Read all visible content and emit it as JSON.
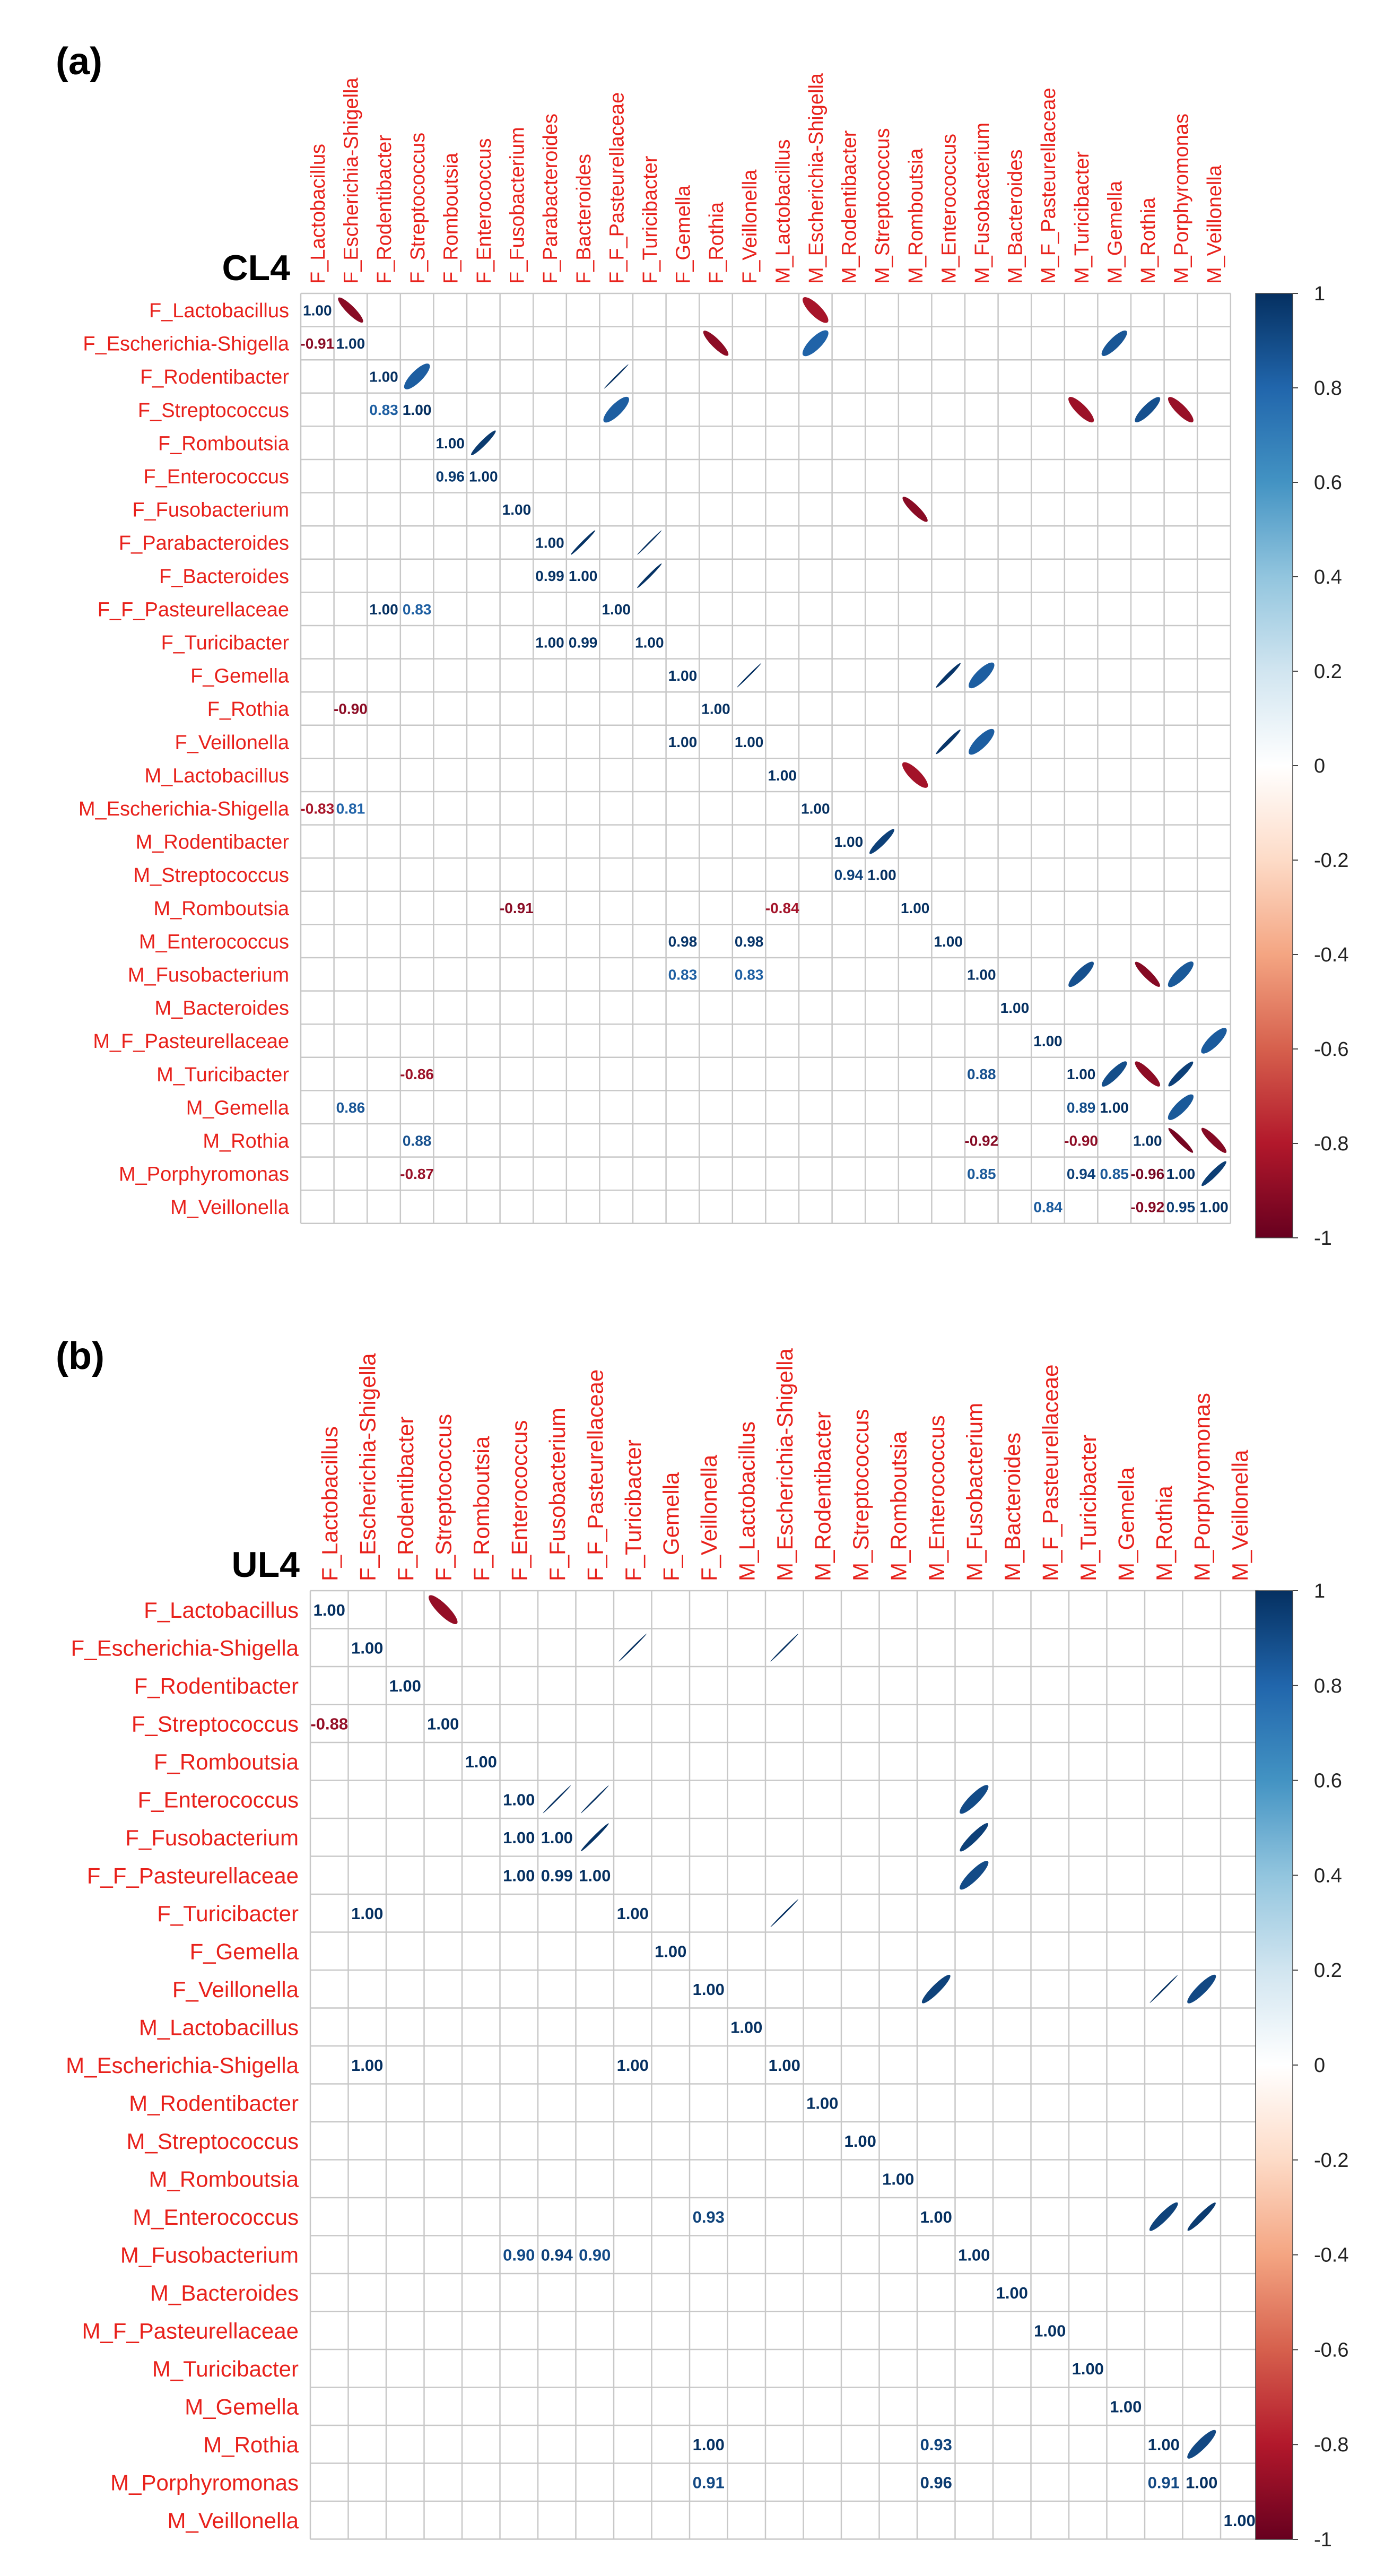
{
  "chart_data": [
    {
      "type": "heatmap",
      "panel_label": "(a)",
      "title": "CL4",
      "labels": [
        "F_Lactobacillus",
        "F_Escherichia-Shigella",
        "F_Rodentibacter",
        "F_Streptococcus",
        "F_Romboutsia",
        "F_Enterococcus",
        "F_Fusobacterium",
        "F_Parabacteroides",
        "F_Bacteroides",
        "F_F_Pasteurellaceae",
        "F_Turicibacter",
        "F_Gemella",
        "F_Rothia",
        "F_Veillonella",
        "M_Lactobacillus",
        "M_Escherichia-Shigella",
        "M_Rodentibacter",
        "M_Streptococcus",
        "M_Romboutsia",
        "M_Enterococcus",
        "M_Fusobacterium",
        "M_Bacteroides",
        "M_F_Pasteurellaceae",
        "M_Turicibacter",
        "M_Gemella",
        "M_Rothia",
        "M_Porphyromonas",
        "M_Veillonella"
      ],
      "value_range": [
        -1,
        1
      ],
      "lower_triangle": "numbers",
      "upper_triangle": "ellipses",
      "colorbar_ticks": [
        "1",
        "0.8",
        "0.6",
        "0.4",
        "0.2",
        "0",
        "-0.2",
        "-0.4",
        "-0.6",
        "-0.8",
        "-1"
      ],
      "diagonal_label": "1.00",
      "numbers": [
        {
          "r": 1,
          "c": 0,
          "text": "-0.91",
          "v": -0.91
        },
        {
          "r": 3,
          "c": 2,
          "text": "0.83",
          "v": 0.83
        },
        {
          "r": 3,
          "c": 3,
          "text": "1.00",
          "v": 1.0
        },
        {
          "r": 5,
          "c": 4,
          "text": "0.96",
          "v": 0.96
        },
        {
          "r": 8,
          "c": 7,
          "text": "0.99",
          "v": 0.99
        },
        {
          "r": 9,
          "c": 2,
          "text": "1.00",
          "v": 1.0
        },
        {
          "r": 9,
          "c": 3,
          "text": "0.83",
          "v": 0.83
        },
        {
          "r": 10,
          "c": 7,
          "text": "1.00",
          "v": 1.0
        },
        {
          "r": 10,
          "c": 8,
          "text": "0.99",
          "v": 0.99
        },
        {
          "r": 12,
          "c": 1,
          "text": "-0.90",
          "v": -0.9
        },
        {
          "r": 13,
          "c": 11,
          "text": "1.00",
          "v": 1.0
        },
        {
          "r": 15,
          "c": 0,
          "text": "-0.83",
          "v": -0.83
        },
        {
          "r": 15,
          "c": 1,
          "text": "0.81",
          "v": 0.81
        },
        {
          "r": 17,
          "c": 16,
          "text": "0.94",
          "v": 0.94
        },
        {
          "r": 18,
          "c": 6,
          "text": "-0.91",
          "v": -0.91
        },
        {
          "r": 18,
          "c": 14,
          "text": "-0.84",
          "v": -0.84
        },
        {
          "r": 19,
          "c": 11,
          "text": "0.98",
          "v": 0.98
        },
        {
          "r": 19,
          "c": 13,
          "text": "0.98",
          "v": 0.98
        },
        {
          "r": 20,
          "c": 11,
          "text": "0.83",
          "v": 0.83
        },
        {
          "r": 20,
          "c": 13,
          "text": "0.83",
          "v": 0.83
        },
        {
          "r": 23,
          "c": 3,
          "text": "-0.86",
          "v": -0.86
        },
        {
          "r": 23,
          "c": 20,
          "text": "0.88",
          "v": 0.88
        },
        {
          "r": 24,
          "c": 1,
          "text": "0.86",
          "v": 0.86
        },
        {
          "r": 24,
          "c": 23,
          "text": "0.89",
          "v": 0.89
        },
        {
          "r": 25,
          "c": 3,
          "text": "0.88",
          "v": 0.88
        },
        {
          "r": 25,
          "c": 20,
          "text": "-0.92",
          "v": -0.92
        },
        {
          "r": 25,
          "c": 23,
          "text": "-0.90",
          "v": -0.9
        },
        {
          "r": 26,
          "c": 3,
          "text": "-0.87",
          "v": -0.87
        },
        {
          "r": 26,
          "c": 20,
          "text": "0.85",
          "v": 0.85
        },
        {
          "r": 26,
          "c": 23,
          "text": "0.94",
          "v": 0.94
        },
        {
          "r": 26,
          "c": 24,
          "text": "0.85",
          "v": 0.85
        },
        {
          "r": 26,
          "c": 25,
          "text": "-0.96",
          "v": -0.96
        },
        {
          "r": 27,
          "c": 22,
          "text": "0.84",
          "v": 0.84
        },
        {
          "r": 27,
          "c": 25,
          "text": "-0.92",
          "v": -0.92
        },
        {
          "r": 27,
          "c": 26,
          "text": "0.95",
          "v": 0.95
        }
      ],
      "ellipses": [
        {
          "r": 0,
          "c": 1,
          "v": -0.91
        },
        {
          "r": 0,
          "c": 15,
          "v": -0.83
        },
        {
          "r": 1,
          "c": 12,
          "v": -0.9
        },
        {
          "r": 1,
          "c": 15,
          "v": 0.81
        },
        {
          "r": 1,
          "c": 24,
          "v": 0.86
        },
        {
          "r": 2,
          "c": 3,
          "v": 0.83
        },
        {
          "r": 2,
          "c": 9,
          "v": 1.0
        },
        {
          "r": 3,
          "c": 9,
          "v": 0.83
        },
        {
          "r": 3,
          "c": 23,
          "v": -0.86
        },
        {
          "r": 3,
          "c": 25,
          "v": 0.88
        },
        {
          "r": 3,
          "c": 26,
          "v": -0.87
        },
        {
          "r": 4,
          "c": 5,
          "v": 0.96
        },
        {
          "r": 6,
          "c": 18,
          "v": -0.91
        },
        {
          "r": 7,
          "c": 8,
          "v": 0.99
        },
        {
          "r": 7,
          "c": 10,
          "v": 1.0
        },
        {
          "r": 8,
          "c": 10,
          "v": 0.99
        },
        {
          "r": 11,
          "c": 13,
          "v": 1.0
        },
        {
          "r": 11,
          "c": 19,
          "v": 0.98
        },
        {
          "r": 11,
          "c": 20,
          "v": 0.83
        },
        {
          "r": 13,
          "c": 19,
          "v": 0.98
        },
        {
          "r": 13,
          "c": 20,
          "v": 0.83
        },
        {
          "r": 14,
          "c": 18,
          "v": -0.84
        },
        {
          "r": 16,
          "c": 17,
          "v": 0.94
        },
        {
          "r": 20,
          "c": 23,
          "v": 0.88
        },
        {
          "r": 20,
          "c": 25,
          "v": -0.92
        },
        {
          "r": 20,
          "c": 26,
          "v": 0.85
        },
        {
          "r": 22,
          "c": 27,
          "v": 0.84
        },
        {
          "r": 23,
          "c": 24,
          "v": 0.89
        },
        {
          "r": 23,
          "c": 25,
          "v": -0.9
        },
        {
          "r": 23,
          "c": 26,
          "v": 0.94
        },
        {
          "r": 24,
          "c": 26,
          "v": 0.85
        },
        {
          "r": 25,
          "c": 26,
          "v": -0.96
        },
        {
          "r": 25,
          "c": 27,
          "v": -0.92
        },
        {
          "r": 26,
          "c": 27,
          "v": 0.95
        }
      ]
    },
    {
      "type": "heatmap",
      "panel_label": "(b)",
      "title": "UL4",
      "labels": [
        "F_Lactobacillus",
        "F_Escherichia-Shigella",
        "F_Rodentibacter",
        "F_Streptococcus",
        "F_Romboutsia",
        "F_Enterococcus",
        "F_Fusobacterium",
        "F_F_Pasteurellaceae",
        "F_Turicibacter",
        "F_Gemella",
        "F_Veillonella",
        "M_Lactobacillus",
        "M_Escherichia-Shigella",
        "M_Rodentibacter",
        "M_Streptococcus",
        "M_Romboutsia",
        "M_Enterococcus",
        "M_Fusobacterium",
        "M_Bacteroides",
        "M_F_Pasteurellaceae",
        "M_Turicibacter",
        "M_Gemella",
        "M_Rothia",
        "M_Porphyromonas",
        "M_Veillonella"
      ],
      "value_range": [
        -1,
        1
      ],
      "lower_triangle": "numbers",
      "upper_triangle": "ellipses",
      "colorbar_ticks": [
        "1",
        "0.8",
        "0.6",
        "0.4",
        "0.2",
        "0",
        "-0.2",
        "-0.4",
        "-0.6",
        "-0.8",
        "-1"
      ],
      "diagonal_label": "1.00",
      "numbers": [
        {
          "r": 3,
          "c": 0,
          "text": "-0.88",
          "v": -0.88
        },
        {
          "r": 6,
          "c": 5,
          "text": "1.00",
          "v": 1.0
        },
        {
          "r": 7,
          "c": 5,
          "text": "1.00",
          "v": 1.0
        },
        {
          "r": 7,
          "c": 6,
          "text": "0.99",
          "v": 0.99
        },
        {
          "r": 8,
          "c": 1,
          "text": "1.00",
          "v": 1.0
        },
        {
          "r": 12,
          "c": 1,
          "text": "1.00",
          "v": 1.0
        },
        {
          "r": 12,
          "c": 8,
          "text": "1.00",
          "v": 1.0
        },
        {
          "r": 16,
          "c": 10,
          "text": "0.93",
          "v": 0.93
        },
        {
          "r": 17,
          "c": 5,
          "text": "0.90",
          "v": 0.9
        },
        {
          "r": 17,
          "c": 6,
          "text": "0.94",
          "v": 0.94
        },
        {
          "r": 17,
          "c": 7,
          "text": "0.90",
          "v": 0.9
        },
        {
          "r": 22,
          "c": 10,
          "text": "1.00",
          "v": 1.0
        },
        {
          "r": 22,
          "c": 16,
          "text": "0.93",
          "v": 0.93
        },
        {
          "r": 23,
          "c": 10,
          "text": "0.91",
          "v": 0.91
        },
        {
          "r": 23,
          "c": 16,
          "text": "0.96",
          "v": 0.96
        },
        {
          "r": 23,
          "c": 22,
          "text": "0.91",
          "v": 0.91
        }
      ],
      "ellipses": [
        {
          "r": 0,
          "c": 3,
          "v": -0.88
        },
        {
          "r": 1,
          "c": 8,
          "v": 1.0
        },
        {
          "r": 1,
          "c": 12,
          "v": 1.0
        },
        {
          "r": 5,
          "c": 6,
          "v": 1.0
        },
        {
          "r": 5,
          "c": 7,
          "v": 1.0
        },
        {
          "r": 5,
          "c": 17,
          "v": 0.9
        },
        {
          "r": 6,
          "c": 7,
          "v": 0.99
        },
        {
          "r": 6,
          "c": 17,
          "v": 0.94
        },
        {
          "r": 7,
          "c": 17,
          "v": 0.9
        },
        {
          "r": 8,
          "c": 12,
          "v": 1.0
        },
        {
          "r": 10,
          "c": 16,
          "v": 0.93
        },
        {
          "r": 10,
          "c": 22,
          "v": 1.0
        },
        {
          "r": 10,
          "c": 23,
          "v": 0.91
        },
        {
          "r": 16,
          "c": 22,
          "v": 0.93
        },
        {
          "r": 16,
          "c": 23,
          "v": 0.96
        },
        {
          "r": 22,
          "c": 23,
          "v": 0.91
        }
      ]
    }
  ]
}
